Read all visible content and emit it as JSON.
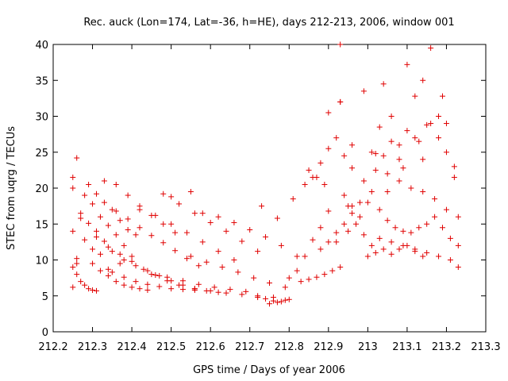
{
  "chart_data": {
    "type": "scatter",
    "title": "Rec. auck (Lon=174, Lat=-36, h=HE), days 212-213, 2006, window 001",
    "xlabel": "GPS time / Days of year 2006",
    "ylabel": "STEC from uqrg / TECUs",
    "xlim": [
      212.2,
      213.3
    ],
    "ylim": [
      0,
      40
    ],
    "x_ticks": [
      212.2,
      212.3,
      212.4,
      212.5,
      212.6,
      212.7,
      212.8,
      212.9,
      213.0,
      213.1,
      213.2,
      213.3
    ],
    "x_tick_labels": [
      "212.2",
      "212.3",
      "212.4",
      "212.5",
      "212.6",
      "212.7",
      "212.8",
      "212.9",
      "213",
      "213.1",
      "213.2",
      "213.3"
    ],
    "y_ticks": [
      0,
      5,
      10,
      15,
      20,
      25,
      30,
      35,
      40
    ],
    "y_tick_labels": [
      "0",
      "5",
      "10",
      "15",
      "20",
      "25",
      "30",
      "35",
      "40"
    ],
    "grid": false,
    "legend": "none",
    "marker": "plus",
    "color": "#e00000",
    "series": [
      {
        "x": [
          212.25,
          212.25,
          212.25,
          212.26,
          212.27,
          212.25,
          212.26,
          212.27,
          212.28,
          212.29,
          212.3,
          212.31,
          212.26,
          212.28,
          212.3,
          212.32,
          212.34,
          212.27,
          212.29,
          212.31,
          212.33,
          212.35,
          212.37,
          212.28,
          212.3,
          212.32,
          212.34,
          212.36,
          212.38,
          212.4,
          212.29,
          212.31,
          212.33,
          212.35,
          212.37,
          212.39,
          212.3,
          212.32,
          212.34,
          212.36,
          212.38,
          212.4,
          212.42,
          212.44,
          212.31,
          212.34,
          212.37,
          212.4,
          212.43,
          212.46,
          212.49,
          212.33,
          212.36,
          212.39,
          212.42,
          212.45,
          212.48,
          212.51,
          212.35,
          212.38,
          212.41,
          212.44,
          212.47,
          212.5,
          212.53,
          212.56,
          212.36,
          212.39,
          212.42,
          212.45,
          212.48,
          212.51,
          212.54,
          212.57,
          212.38,
          212.41,
          212.44,
          212.47,
          212.5,
          212.53,
          212.56,
          212.59,
          212.62,
          212.42,
          212.46,
          212.5,
          212.54,
          212.58,
          212.62,
          212.66,
          212.45,
          212.49,
          212.53,
          212.57,
          212.61,
          212.65,
          212.69,
          212.48,
          212.52,
          212.56,
          212.6,
          212.64,
          212.68,
          212.72,
          212.52,
          212.56,
          212.6,
          212.64,
          212.68,
          212.72,
          212.76,
          212.55,
          212.59,
          212.63,
          212.67,
          212.71,
          212.75,
          212.79,
          212.58,
          212.62,
          212.66,
          212.7,
          212.74,
          212.78,
          212.82,
          212.72,
          212.74,
          212.76,
          212.78,
          212.8,
          212.75,
          212.77,
          212.79,
          212.73,
          212.77,
          212.81,
          212.84,
          212.8,
          212.82,
          212.84,
          212.86,
          212.88,
          212.9,
          212.83,
          212.85,
          212.87,
          212.89,
          212.91,
          212.93,
          212.86,
          212.88,
          212.9,
          212.92,
          212.94,
          212.96,
          212.88,
          212.9,
          212.92,
          212.94,
          212.96,
          212.98,
          212.9,
          212.93,
          212.96,
          212.99,
          212.93,
          212.95,
          212.97,
          212.99,
          213.01,
          213.0,
          213.02,
          213.04,
          213.06,
          213.08,
          213.1,
          213.12,
          213.14,
          213.02,
          213.04,
          213.06,
          213.08,
          213.1,
          213.12,
          213.14,
          213.16,
          213.18,
          213.2,
          213.22,
          213.01,
          213.03,
          213.05,
          213.07,
          213.09,
          213.11,
          213.13,
          213.15,
          213.17,
          213.19,
          213.21,
          213.23,
          213.02,
          213.05,
          213.08,
          213.11,
          213.14,
          213.17,
          213.2,
          213.23,
          213.03,
          213.06,
          213.09,
          213.12,
          213.15,
          213.18,
          213.21,
          213.23,
          212.25,
          212.26,
          212.41,
          212.5,
          212.55,
          212.93,
          212.99,
          213.04,
          213.1,
          213.15,
          213.14,
          213.09,
          213.03,
          213.18,
          212.96,
          212.94,
          212.89,
          212.87,
          212.85,
          213.01,
          213.06,
          213.12,
          213.19,
          213.22,
          213.2,
          213.16,
          213.13,
          213.08,
          213.05,
          213.0,
          212.98,
          212.95,
          212.92
        ],
        "y": [
          21.5,
          20.0,
          14.0,
          24.2,
          16.5,
          9.0,
          8.0,
          7.0,
          6.5,
          6.0,
          5.8,
          5.7,
          10.2,
          12.8,
          11.5,
          10.8,
          8.7,
          15.8,
          15.1,
          14.0,
          12.6,
          11.2,
          9.5,
          19.0,
          17.8,
          16.0,
          14.8,
          13.5,
          12.0,
          10.5,
          20.5,
          19.2,
          18.0,
          17.0,
          15.5,
          14.2,
          9.5,
          8.5,
          7.8,
          7.0,
          6.5,
          6.2,
          6.0,
          5.8,
          13.2,
          11.8,
          10.8,
          9.8,
          8.7,
          7.9,
          7.1,
          21.0,
          20.5,
          19.0,
          17.5,
          16.2,
          15.0,
          13.8,
          8.3,
          7.6,
          7.0,
          6.6,
          6.3,
          6.0,
          5.9,
          5.8,
          16.8,
          15.7,
          14.5,
          13.4,
          12.4,
          11.3,
          10.2,
          9.2,
          10.0,
          9.2,
          8.5,
          7.8,
          7.1,
          6.5,
          6.0,
          5.7,
          5.5,
          17.0,
          16.2,
          15.0,
          13.8,
          12.5,
          11.2,
          10.0,
          8.0,
          7.6,
          7.1,
          6.6,
          6.2,
          5.9,
          5.6,
          19.2,
          17.8,
          16.5,
          15.2,
          14.0,
          12.6,
          11.2,
          6.5,
          6.0,
          5.7,
          5.4,
          5.2,
          5.0,
          4.8,
          10.5,
          9.7,
          9.0,
          8.3,
          7.5,
          6.8,
          6.2,
          16.5,
          16.0,
          15.2,
          14.2,
          13.2,
          12.0,
          10.5,
          4.8,
          4.6,
          4.3,
          4.2,
          4.5,
          3.9,
          4.1,
          4.4,
          17.5,
          15.8,
          18.5,
          20.5,
          7.5,
          8.5,
          10.5,
          12.8,
          14.5,
          16.8,
          7.0,
          7.3,
          7.6,
          8.0,
          8.5,
          9.0,
          21.5,
          23.5,
          25.5,
          27.0,
          24.5,
          22.8,
          11.5,
          12.5,
          13.8,
          15.0,
          16.5,
          18.0,
          30.5,
          32.0,
          26.0,
          21.0,
          40.0,
          17.5,
          15.0,
          13.5,
          12.0,
          10.5,
          11.0,
          11.5,
          10.8,
          11.5,
          12.0,
          11.2,
          10.5,
          24.8,
          34.5,
          30.0,
          26.0,
          37.2,
          32.8,
          35.0,
          39.5,
          30.0,
          29.0,
          23.0,
          19.5,
          17.0,
          15.5,
          14.5,
          14.0,
          13.8,
          14.5,
          15.0,
          16.0,
          14.5,
          13.0,
          12.0,
          22.5,
          22.0,
          21.0,
          20.0,
          19.5,
          18.5,
          17.0,
          16.0,
          13.0,
          12.5,
          12.0,
          11.5,
          11.0,
          10.5,
          10.0,
          9.0,
          6.2,
          9.5,
          13.5,
          18.8,
          19.5,
          32.0,
          33.5,
          24.5,
          28.0,
          28.8,
          24.0,
          22.8,
          28.5,
          27.0,
          17.5,
          19.0,
          20.5,
          21.5,
          22.5,
          25.0,
          26.5,
          27.0,
          32.8,
          21.5,
          25.0,
          29.0,
          26.5,
          24.0,
          19.5,
          18.0,
          16.0,
          14.0,
          12.5
        ]
      }
    ]
  }
}
